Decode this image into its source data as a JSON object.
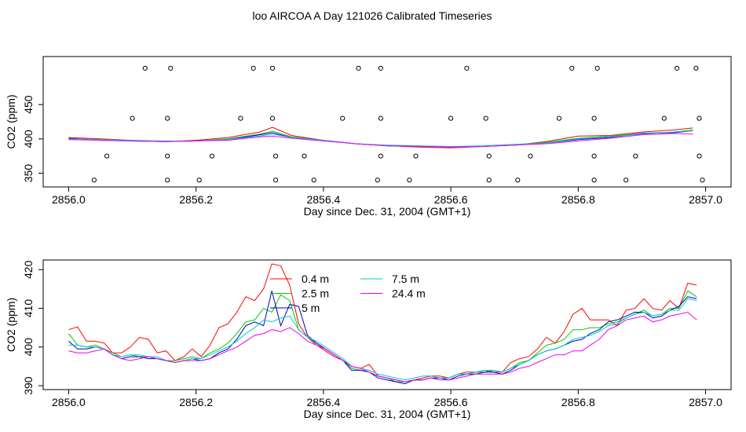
{
  "figure_title": "loo AIRCOA A  Day 121026  Calibrated Timeseries",
  "chart_data": [
    {
      "type": "scatter",
      "title": "",
      "xlabel": "Day since Dec. 31, 2004 (GMT+1)",
      "ylabel": "CO2 (ppm)",
      "xlim": [
        2855.96,
        2857.04
      ],
      "ylim": [
        330,
        520
      ],
      "x_ticks": [
        "2856.0",
        "2856.2",
        "2856.4",
        "2856.6",
        "2856.8",
        "2857.0"
      ],
      "y_ticks": [
        "350",
        "400",
        "450"
      ],
      "series": [
        {
          "color": "#ff0000",
          "x": [
            2856.0,
            2856.05,
            2856.1,
            2856.15,
            2856.2,
            2856.25,
            2856.3,
            2856.32,
            2856.35,
            2856.4,
            2856.45,
            2856.5,
            2856.55,
            2856.6,
            2856.65,
            2856.7,
            2856.75,
            2856.8,
            2856.85,
            2856.9,
            2856.95,
            2856.98
          ],
          "y": [
            402,
            400,
            398,
            396,
            398,
            402,
            410,
            417,
            405,
            398,
            393,
            390,
            388,
            387,
            389,
            391,
            396,
            404,
            405,
            410,
            413,
            416
          ]
        },
        {
          "color": "#00cc00",
          "x": [
            2856.0,
            2856.05,
            2856.1,
            2856.15,
            2856.2,
            2856.25,
            2856.3,
            2856.32,
            2856.35,
            2856.4,
            2856.45,
            2856.5,
            2856.55,
            2856.6,
            2856.65,
            2856.7,
            2856.75,
            2856.8,
            2856.85,
            2856.9,
            2856.95,
            2856.98
          ],
          "y": [
            400,
            399,
            397,
            396,
            397,
            400,
            407,
            411,
            403,
            398,
            393,
            390,
            389,
            388,
            389,
            391,
            395,
            401,
            404,
            408,
            410,
            413
          ]
        },
        {
          "color": "#0000ff",
          "x": [
            2856.0,
            2856.05,
            2856.1,
            2856.15,
            2856.2,
            2856.25,
            2856.3,
            2856.32,
            2856.35,
            2856.4,
            2856.45,
            2856.5,
            2856.55,
            2856.6,
            2856.65,
            2856.7,
            2856.75,
            2856.8,
            2856.85,
            2856.9,
            2856.95,
            2856.98
          ],
          "y": [
            401,
            398,
            397,
            396,
            397,
            399,
            406,
            409,
            402,
            398,
            393,
            390,
            389,
            388,
            389,
            391,
            394,
            399,
            402,
            408,
            409,
            412
          ]
        },
        {
          "color": "#00cccc",
          "x": [
            2856.0,
            2856.05,
            2856.1,
            2856.15,
            2856.2,
            2856.25,
            2856.3,
            2856.32,
            2856.35,
            2856.4,
            2856.45,
            2856.5,
            2856.55,
            2856.6,
            2856.65,
            2856.7,
            2856.75,
            2856.8,
            2856.85,
            2856.9,
            2856.95,
            2856.98
          ],
          "y": [
            400,
            399,
            398,
            397,
            397,
            399,
            404,
            407,
            402,
            398,
            393,
            391,
            390,
            389,
            390,
            392,
            394,
            400,
            403,
            407,
            410,
            412
          ]
        },
        {
          "color": "#ff00ff",
          "x": [
            2856.0,
            2856.05,
            2856.1,
            2856.15,
            2856.2,
            2856.25,
            2856.3,
            2856.32,
            2856.35,
            2856.4,
            2856.45,
            2856.5,
            2856.55,
            2856.6,
            2856.65,
            2856.7,
            2856.75,
            2856.8,
            2856.85,
            2856.9,
            2856.95,
            2856.98
          ],
          "y": [
            399,
            398,
            397,
            396,
            397,
            398,
            403,
            404,
            401,
            397,
            393,
            390,
            389,
            388,
            389,
            391,
            393,
            397,
            401,
            406,
            408,
            407
          ]
        }
      ],
      "markers": {
        "x": [
          2856.04,
          2856.06,
          2856.1,
          2856.12,
          2856.155,
          2856.155,
          2856.155,
          2856.16,
          2856.205,
          2856.225,
          2856.27,
          2856.29,
          2856.32,
          2856.32,
          2856.325,
          2856.325,
          2856.37,
          2856.385,
          2856.43,
          2856.455,
          2856.485,
          2856.49,
          2856.49,
          2856.49,
          2856.535,
          2856.545,
          2856.6,
          2856.625,
          2856.655,
          2856.66,
          2856.66,
          2856.705,
          2856.725,
          2856.77,
          2856.79,
          2856.825,
          2856.825,
          2856.825,
          2856.83,
          2856.875,
          2856.89,
          2856.935,
          2856.955,
          2856.985,
          2856.99,
          2856.99,
          2856.995
        ],
        "y": [
          340,
          375,
          430,
          503,
          340,
          375,
          430,
          503,
          340,
          375,
          430,
          503,
          430,
          503,
          340,
          375,
          375,
          340,
          430,
          503,
          340,
          375,
          430,
          503,
          340,
          375,
          430,
          503,
          430,
          340,
          375,
          340,
          375,
          430,
          503,
          430,
          375,
          340,
          503,
          340,
          375,
          430,
          503,
          503,
          430,
          375,
          340
        ]
      }
    },
    {
      "type": "line",
      "title": "",
      "xlabel": "Day since Dec. 31, 2004 (GMT+1)",
      "ylabel": "CO2 (ppm)",
      "xlim": [
        2855.96,
        2857.04
      ],
      "ylim": [
        389,
        422.5
      ],
      "x_ticks": [
        "2856.0",
        "2856.2",
        "2856.4",
        "2856.6",
        "2856.8",
        "2857.0"
      ],
      "y_ticks": [
        "390",
        "400",
        "410",
        "420"
      ],
      "legend_position": "top-left",
      "x": [
        2856.0,
        2856.014,
        2856.028,
        2856.042,
        2856.056,
        2856.069,
        2856.083,
        2856.097,
        2856.111,
        2856.125,
        2856.139,
        2856.153,
        2856.167,
        2856.181,
        2856.194,
        2856.208,
        2856.222,
        2856.236,
        2856.25,
        2856.264,
        2856.278,
        2856.292,
        2856.306,
        2856.319,
        2856.333,
        2856.347,
        2856.361,
        2856.375,
        2856.389,
        2856.403,
        2856.417,
        2856.431,
        2856.444,
        2856.458,
        2856.472,
        2856.486,
        2856.5,
        2856.514,
        2856.528,
        2856.542,
        2856.556,
        2856.569,
        2856.583,
        2856.597,
        2856.611,
        2856.625,
        2856.639,
        2856.653,
        2856.667,
        2856.681,
        2856.694,
        2856.708,
        2856.722,
        2856.736,
        2856.75,
        2856.764,
        2856.778,
        2856.792,
        2856.806,
        2856.819,
        2856.833,
        2856.847,
        2856.861,
        2856.875,
        2856.889,
        2856.903,
        2856.917,
        2856.931,
        2856.944,
        2856.958,
        2856.972,
        2856.986
      ],
      "series": [
        {
          "name": "0.4 m",
          "color": "#ff0000",
          "values": [
            404.5,
            405.2,
            401.5,
            401.5,
            401.0,
            398.5,
            398.5,
            400.0,
            402.5,
            402.0,
            398.5,
            399.0,
            396.5,
            397.5,
            399.5,
            397.5,
            400.5,
            405.0,
            406.0,
            409.0,
            413.0,
            412.0,
            415.0,
            421.5,
            421.0,
            416.0,
            406.0,
            402.5,
            400.5,
            399.0,
            397.5,
            396.5,
            395.0,
            394.5,
            395.5,
            392.5,
            392.0,
            391.5,
            391.0,
            391.5,
            392.0,
            392.5,
            392.5,
            392.0,
            393.0,
            393.5,
            393.5,
            394.0,
            393.5,
            393.5,
            396.0,
            397.0,
            397.5,
            399.5,
            402.5,
            401.0,
            404.0,
            408.5,
            410.0,
            407.0,
            407.0,
            407.0,
            405.5,
            409.5,
            410.0,
            412.5,
            410.0,
            409.5,
            412.0,
            410.0,
            416.5,
            416.0
          ]
        },
        {
          "name": "2.5 m",
          "color": "#00cc00",
          "values": [
            403.5,
            400.5,
            400.0,
            400.5,
            399.5,
            398.5,
            397.5,
            398.0,
            397.5,
            397.5,
            397.0,
            396.5,
            396.5,
            397.0,
            397.5,
            397.0,
            398.5,
            399.5,
            401.0,
            403.5,
            406.5,
            407.0,
            410.0,
            409.0,
            413.5,
            412.0,
            404.5,
            402.5,
            401.0,
            399.5,
            398.0,
            396.5,
            394.5,
            394.0,
            393.5,
            392.5,
            392.0,
            391.0,
            391.0,
            391.5,
            391.5,
            392.0,
            392.0,
            392.0,
            393.0,
            393.0,
            393.5,
            393.5,
            394.0,
            393.5,
            394.5,
            396.0,
            396.5,
            398.5,
            400.5,
            401.0,
            402.0,
            404.5,
            404.5,
            405.0,
            405.0,
            406.0,
            406.5,
            407.5,
            408.5,
            409.5,
            408.0,
            408.5,
            410.0,
            410.0,
            414.5,
            413.0
          ]
        },
        {
          "name": "5 m",
          "color": "#0000cc",
          "values": [
            401.5,
            399.5,
            399.5,
            400.0,
            399.5,
            398.0,
            397.0,
            397.5,
            397.5,
            397.0,
            397.0,
            396.5,
            396.0,
            396.5,
            397.0,
            396.5,
            397.0,
            398.5,
            399.5,
            402.0,
            405.5,
            406.5,
            405.5,
            414.5,
            405.5,
            411.0,
            410.5,
            403.0,
            401.0,
            399.5,
            398.0,
            396.5,
            394.0,
            394.0,
            393.5,
            392.0,
            391.5,
            391.0,
            390.5,
            391.5,
            391.5,
            392.0,
            392.0,
            391.5,
            392.5,
            393.0,
            393.0,
            393.5,
            393.5,
            393.0,
            394.0,
            395.5,
            396.5,
            398.0,
            399.0,
            399.5,
            400.5,
            401.5,
            402.0,
            403.5,
            404.5,
            406.5,
            407.0,
            408.0,
            409.0,
            409.0,
            407.5,
            408.0,
            409.5,
            410.5,
            413.0,
            412.5
          ]
        },
        {
          "name": "7.5 m",
          "color": "#00cccc",
          "values": [
            400.5,
            400.5,
            400.0,
            400.0,
            399.5,
            398.0,
            397.5,
            398.0,
            398.0,
            397.5,
            397.5,
            396.5,
            396.0,
            396.5,
            397.0,
            397.0,
            398.0,
            399.0,
            400.0,
            401.5,
            403.5,
            405.0,
            407.0,
            406.5,
            407.5,
            408.0,
            404.5,
            402.5,
            401.5,
            400.0,
            398.5,
            397.0,
            395.0,
            394.5,
            394.0,
            393.0,
            392.5,
            392.0,
            391.5,
            392.0,
            392.5,
            392.5,
            392.0,
            392.0,
            393.0,
            393.0,
            393.5,
            394.0,
            394.0,
            393.5,
            394.5,
            395.5,
            396.5,
            398.0,
            399.0,
            399.5,
            400.5,
            402.0,
            402.5,
            403.0,
            404.0,
            405.5,
            406.0,
            407.5,
            408.5,
            409.0,
            408.0,
            408.5,
            409.5,
            409.5,
            412.5,
            412.0
          ]
        },
        {
          "name": "24.4 m",
          "color": "#ee00ee",
          "values": [
            399.0,
            398.5,
            398.5,
            399.0,
            399.5,
            398.0,
            397.0,
            396.5,
            397.0,
            397.5,
            397.0,
            396.5,
            396.0,
            396.5,
            396.5,
            396.5,
            397.0,
            398.0,
            399.0,
            400.0,
            401.5,
            403.0,
            403.5,
            404.5,
            404.0,
            405.0,
            403.5,
            401.5,
            400.5,
            399.5,
            398.0,
            396.5,
            395.0,
            394.5,
            393.5,
            392.5,
            392.0,
            391.5,
            391.0,
            391.5,
            391.5,
            392.0,
            391.5,
            391.5,
            392.0,
            392.5,
            393.0,
            393.0,
            393.0,
            393.0,
            393.5,
            394.5,
            395.0,
            396.0,
            397.0,
            398.0,
            398.0,
            399.0,
            399.0,
            400.5,
            402.0,
            404.5,
            405.5,
            407.0,
            407.5,
            408.0,
            406.5,
            407.0,
            408.0,
            408.5,
            409.0,
            407.0
          ]
        }
      ]
    }
  ]
}
